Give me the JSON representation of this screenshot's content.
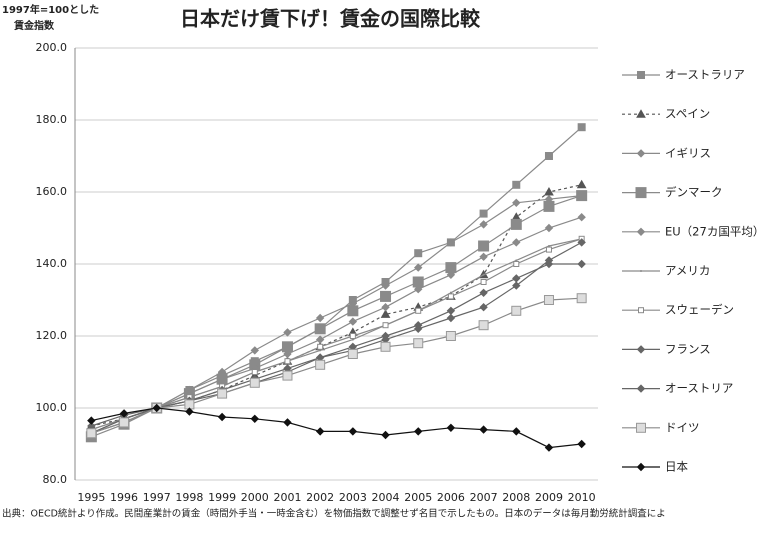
{
  "chart_data": {
    "type": "line",
    "title": "日本だけ賃下げ！賃金の国際比較",
    "ylabel": [
      "1997年=100とした",
      "賃金指数"
    ],
    "note": "出典：OECD統計より作成。民間産業計の賃金（時間外手当・一時金含む）を物価指数で調整せず名目で示したもの。日本のデータは毎月勤労統計調査によ",
    "categories": [
      "1995",
      "1996",
      "1997",
      "1998",
      "1999",
      "2000",
      "2001",
      "2002",
      "2003",
      "2004",
      "2005",
      "2006",
      "2007",
      "2008",
      "2009",
      "2010"
    ],
    "ylim": [
      80,
      200
    ],
    "yticks": [
      {
        "value": 80,
        "label": "80.0"
      },
      {
        "value": 100,
        "label": "100.0"
      },
      {
        "value": 120,
        "label": "120.0"
      },
      {
        "value": 140,
        "label": "140.0"
      },
      {
        "value": 160,
        "label": "160.0"
      },
      {
        "value": 180,
        "label": "180.0"
      },
      {
        "value": 200,
        "label": "200.0"
      }
    ],
    "grid": true,
    "legend": "right",
    "series": [
      {
        "name": "オーストラリア",
        "color": "#8a8a8a",
        "marker": "square",
        "values": [
          93,
          96,
          100,
          105,
          109,
          113,
          117,
          122,
          130,
          135,
          143,
          146,
          154,
          162,
          170,
          178
        ]
      },
      {
        "name": "スペイン",
        "color": "#555555",
        "marker": "triangle",
        "dashed": true,
        "values": [
          95,
          97,
          100,
          102,
          105,
          109,
          113,
          117,
          121,
          126,
          128,
          131,
          137,
          153,
          160,
          162
        ]
      },
      {
        "name": "イギリス",
        "color": "#8a8a8a",
        "marker": "diamond",
        "values": [
          93,
          96,
          100,
          105,
          110,
          116,
          121,
          125,
          129,
          134,
          139,
          146,
          151,
          157,
          158,
          159
        ]
      },
      {
        "name": "デンマーク",
        "color": "#8a8a8a",
        "marker": "bigsquare",
        "values": [
          92,
          95.5,
          100,
          104,
          108,
          112,
          117,
          122,
          127,
          131,
          135,
          139,
          145,
          151,
          156,
          159
        ]
      },
      {
        "name": "EU（27カ国平均）",
        "color": "#8a8a8a",
        "marker": "diamond",
        "values": [
          94,
          97,
          100,
          104,
          108,
          111,
          115,
          119,
          124,
          128,
          133,
          137,
          142,
          146,
          150,
          153
        ]
      },
      {
        "name": "アメリカ",
        "color": "#8a8a8a",
        "marker": "none",
        "values": [
          94,
          97,
          100,
          103,
          106,
          110,
          113,
          116,
          119,
          123,
          127,
          132,
          137,
          141,
          145,
          147
        ]
      },
      {
        "name": "スウェーデン",
        "color": "#8a8a8a",
        "marker": "smallsquare",
        "values": [
          93,
          97,
          100,
          103,
          106,
          110,
          113,
          117,
          120,
          123,
          127,
          131,
          135,
          140,
          144,
          147
        ]
      },
      {
        "name": "フランス",
        "color": "#666666",
        "marker": "diamond",
        "values": [
          93,
          97,
          100,
          102,
          105,
          108,
          111,
          114,
          116,
          119,
          122,
          125,
          128,
          134,
          141,
          146
        ]
      },
      {
        "name": "オーストリア",
        "color": "#666666",
        "marker": "diamond",
        "values": [
          95,
          98,
          100,
          102,
          104,
          107,
          110,
          114,
          117,
          120,
          123,
          127,
          132,
          136,
          140,
          140
        ]
      },
      {
        "name": "ドイツ",
        "color": "#8a8a8a",
        "marker": "star",
        "values": [
          93,
          96,
          100,
          101,
          104,
          107,
          109,
          112,
          115,
          117,
          118,
          120,
          123,
          127,
          130,
          130.5
        ]
      },
      {
        "name": "日本",
        "color": "#111111",
        "marker": "diamond",
        "values": [
          96.5,
          98.5,
          100,
          99,
          97.5,
          97,
          96,
          93.5,
          93.5,
          92.5,
          93.5,
          94.5,
          94,
          93.5,
          89,
          90
        ]
      }
    ]
  }
}
